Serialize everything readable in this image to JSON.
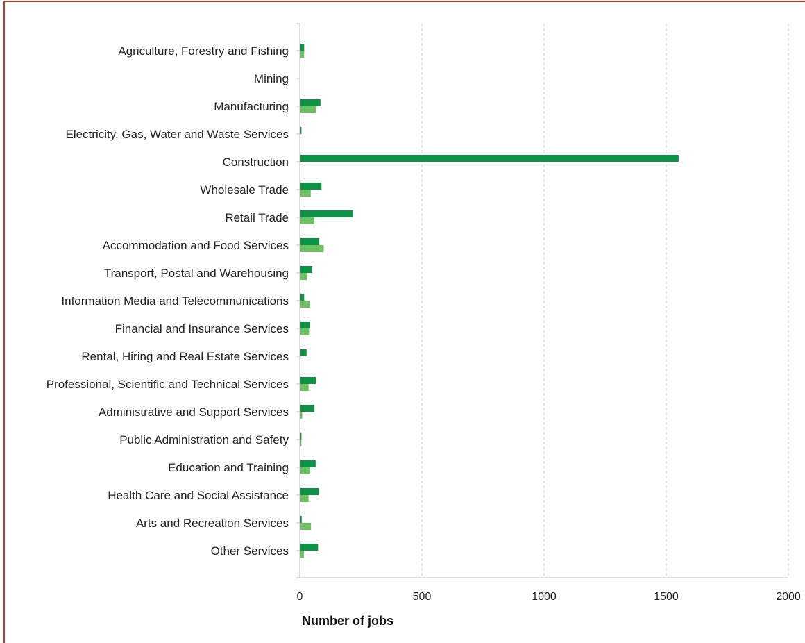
{
  "colors": {
    "frame": "#c0392b",
    "series_a": "#0d9444",
    "series_b": "#6cc160",
    "grid": "#c8c8c8",
    "axis": "#bdbdbd"
  },
  "chart_data": {
    "type": "bar",
    "orientation": "horizontal",
    "title": "",
    "xlabel": "Number of jobs",
    "ylabel": "",
    "xlim": [
      0,
      2000
    ],
    "xticks": [
      0,
      500,
      1000,
      1500,
      2000
    ],
    "grid": "vertical dashed",
    "legend": "none",
    "categories": [
      "Agriculture, Forestry and Fishing",
      "Mining",
      "Manufacturing",
      "Electricity, Gas, Water and Waste Services",
      "Construction",
      "Wholesale Trade",
      "Retail Trade",
      "Accommodation and Food Services",
      "Transport, Postal and Warehousing",
      "Information Media and Telecommunications",
      "Financial and Insurance Services",
      "Rental, Hiring and Real Estate Services",
      "Professional, Scientific and Technical Services",
      "Administrative and Support Services",
      "Public Administration and Safety",
      "Education and Training",
      "Health Care and Social Assistance",
      "Arts and Recreation Services",
      "Other Services"
    ],
    "series": [
      {
        "color": "#0d9444",
        "values": [
          15,
          0,
          82,
          4,
          1548,
          86,
          215,
          77,
          48,
          15,
          38,
          25,
          63,
          57,
          4,
          62,
          75,
          5,
          72
        ]
      },
      {
        "color": "#6cc160",
        "values": [
          15,
          0,
          63,
          0,
          0,
          42,
          57,
          95,
          27,
          38,
          35,
          0,
          33,
          7,
          4,
          38,
          33,
          43,
          14
        ]
      }
    ]
  }
}
